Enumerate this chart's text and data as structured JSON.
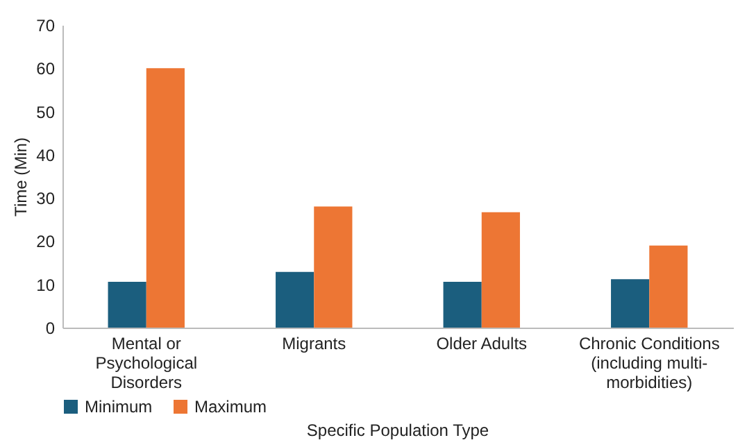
{
  "chart_data": {
    "type": "bar",
    "xlabel": "Specific Population Type",
    "ylabel": "Time (Min)",
    "categories": [
      "Mental or Psychological Disorders",
      "Migrants",
      "Older Adults",
      "Chronic Conditions (including multi-morbidities)"
    ],
    "series": [
      {
        "name": "Minimum",
        "color": "#1b5e7e",
        "values": [
          10.6,
          12.9,
          10.6,
          11.2
        ]
      },
      {
        "name": "Maximum",
        "color": "#ed7634",
        "values": [
          60,
          28,
          26.7,
          19
        ]
      }
    ],
    "ylim": [
      0,
      70
    ],
    "yticks": [
      0,
      10,
      20,
      30,
      40,
      50,
      60,
      70
    ],
    "grid": false,
    "legend": "bottom"
  }
}
